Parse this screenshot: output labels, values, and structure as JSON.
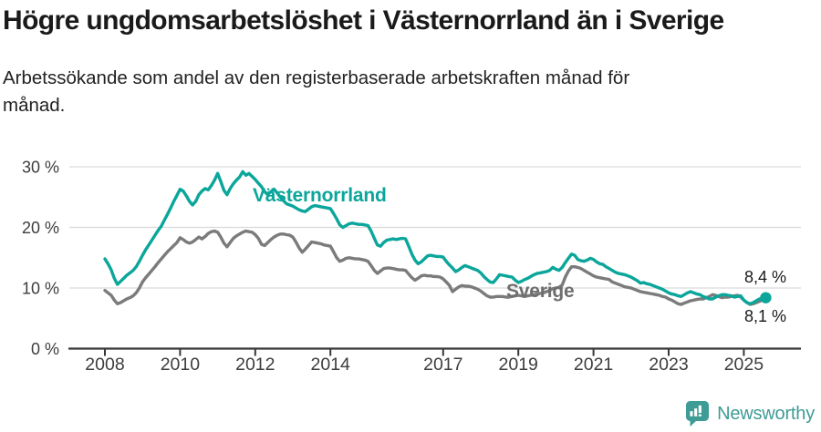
{
  "header": {
    "title": "Högre ungdomsarbetslöshet i Västernorrland än i Sverige",
    "subtitle": "Arbetssökande som andel av den registerbaserade arbetskraften månad för\nmånad."
  },
  "footer": {
    "brand": "Newsworthy"
  },
  "colors": {
    "accent_teal": "#0ba69b",
    "series_gray": "#7b7b7b",
    "grid": "#dadada",
    "axis": "#383838",
    "tick_text": "#3d3d3d",
    "brand_teal": "#3e9b95"
  },
  "chart_data": {
    "type": "line",
    "title": "Högre ungdomsarbetslöshet i Västernorrland än i Sverige",
    "subtitle": "Arbetssökande som andel av den registerbaserade arbetskraften månad för månad.",
    "unit": "%",
    "frequency": "monthly",
    "x_start": "2008-01",
    "x_end": "2025-08",
    "ylim": [
      0,
      31.5
    ],
    "grid": "horizontal",
    "legend_position": "inline",
    "y_ticks": [
      0,
      10,
      20,
      30
    ],
    "y_tick_labels": [
      "0 %",
      "10 %",
      "20 %",
      "30 %"
    ],
    "x_tick_years": [
      2008,
      2010,
      2012,
      2014,
      2017,
      2019,
      2021,
      2023,
      2025
    ],
    "series": [
      {
        "name": "Sverige",
        "color": "#7b7b7b",
        "end_label": "8,1 %",
        "end_value": 8.1,
        "values": [
          9.6,
          9.2,
          8.8,
          8.0,
          7.4,
          7.6,
          7.9,
          8.2,
          8.4,
          8.7,
          9.2,
          10.0,
          11.0,
          11.7,
          12.3,
          12.9,
          13.5,
          14.2,
          14.8,
          15.4,
          16.0,
          16.5,
          17.0,
          17.5,
          18.3,
          18.0,
          17.6,
          17.4,
          17.6,
          18.0,
          18.4,
          18.1,
          18.5,
          19.0,
          19.3,
          19.4,
          19.2,
          18.4,
          17.4,
          16.8,
          17.5,
          18.2,
          18.6,
          18.9,
          19.2,
          19.4,
          19.3,
          19.2,
          18.8,
          18.2,
          17.2,
          17.0,
          17.5,
          18.0,
          18.4,
          18.7,
          18.9,
          18.9,
          18.8,
          18.7,
          18.4,
          17.6,
          16.6,
          15.9,
          16.4,
          17.0,
          17.6,
          17.5,
          17.4,
          17.3,
          17.1,
          17.0,
          16.9,
          16.0,
          15.0,
          14.4,
          14.6,
          14.9,
          15.0,
          14.9,
          14.8,
          14.8,
          14.7,
          14.6,
          14.4,
          13.7,
          12.9,
          12.4,
          12.8,
          13.2,
          13.3,
          13.3,
          13.2,
          13.1,
          13.0,
          13.0,
          12.9,
          12.3,
          11.7,
          11.3,
          11.6,
          12.0,
          12.1,
          12.0,
          12.0,
          11.9,
          11.9,
          11.8,
          11.5,
          11.0,
          10.4,
          9.4,
          9.8,
          10.2,
          10.4,
          10.3,
          10.3,
          10.2,
          10.0,
          9.8,
          9.5,
          9.1,
          8.7,
          8.5,
          8.5,
          8.6,
          8.6,
          8.6,
          8.5,
          8.5,
          8.6,
          8.7,
          8.8,
          8.7,
          8.6,
          8.7,
          8.8,
          8.9,
          9.0,
          9.1,
          9.2,
          9.4,
          9.6,
          9.9,
          10.0,
          10.1,
          10.5,
          11.8,
          12.8,
          13.5,
          13.5,
          13.4,
          13.2,
          12.9,
          12.6,
          12.3,
          12.0,
          11.8,
          11.7,
          11.6,
          11.5,
          11.4,
          11.0,
          10.8,
          10.6,
          10.4,
          10.2,
          10.1,
          10.0,
          9.8,
          9.6,
          9.4,
          9.3,
          9.2,
          9.1,
          9.0,
          8.9,
          8.8,
          8.6,
          8.5,
          8.2,
          8.0,
          7.7,
          7.4,
          7.3,
          7.5,
          7.7,
          7.9,
          8.0,
          8.1,
          8.2,
          8.2,
          8.4,
          8.6,
          8.9,
          8.8,
          8.6,
          8.4,
          8.5,
          8.5,
          8.6,
          8.7,
          8.8,
          8.5,
          8.0,
          7.6,
          7.3,
          7.4,
          7.6,
          7.8,
          8.0,
          8.1
        ]
      },
      {
        "name": "Västernorrland",
        "color": "#0ba69b",
        "end_label": "8,4 %",
        "end_value": 8.4,
        "end_dot": true,
        "values": [
          14.8,
          14.0,
          13.0,
          11.6,
          10.6,
          11.1,
          11.6,
          12.1,
          12.5,
          12.9,
          13.5,
          14.4,
          15.4,
          16.3,
          17.1,
          17.9,
          18.7,
          19.5,
          20.2,
          21.2,
          22.2,
          23.2,
          24.3,
          25.3,
          26.3,
          26.0,
          25.2,
          24.3,
          23.7,
          24.3,
          25.4,
          26.0,
          26.4,
          26.2,
          26.9,
          27.8,
          28.9,
          27.6,
          26.1,
          25.4,
          26.4,
          27.2,
          27.8,
          28.3,
          29.2,
          28.6,
          28.9,
          28.4,
          27.9,
          27.3,
          26.7,
          25.9,
          25.4,
          25.9,
          26.3,
          25.7,
          25.0,
          24.4,
          23.9,
          23.7,
          23.5,
          23.2,
          22.9,
          22.7,
          22.6,
          23.0,
          23.4,
          23.6,
          23.5,
          23.4,
          23.3,
          23.2,
          23.1,
          22.3,
          21.4,
          20.4,
          20.0,
          20.3,
          20.6,
          20.7,
          20.6,
          20.5,
          20.5,
          20.4,
          20.3,
          19.4,
          18.2,
          17.1,
          16.9,
          17.5,
          17.9,
          18.0,
          18.1,
          18.0,
          18.1,
          18.2,
          18.1,
          16.9,
          15.6,
          14.6,
          14.0,
          14.3,
          14.8,
          15.3,
          15.4,
          15.3,
          15.2,
          15.2,
          15.1,
          14.4,
          13.8,
          13.3,
          12.7,
          13.0,
          13.4,
          13.7,
          13.5,
          13.3,
          13.1,
          12.9,
          12.5,
          11.9,
          11.4,
          11.0,
          10.9,
          11.5,
          12.2,
          12.1,
          12.0,
          11.9,
          11.8,
          11.3,
          10.9,
          11.1,
          11.4,
          11.6,
          11.9,
          12.2,
          12.4,
          12.5,
          12.6,
          12.7,
          12.9,
          13.4,
          13.1,
          12.9,
          13.4,
          14.2,
          14.9,
          15.6,
          15.4,
          14.7,
          14.5,
          14.4,
          14.6,
          14.9,
          14.7,
          14.3,
          14.0,
          13.9,
          13.5,
          13.2,
          12.9,
          12.6,
          12.4,
          12.3,
          12.2,
          12.0,
          11.8,
          11.5,
          11.2,
          10.8,
          10.9,
          10.7,
          10.6,
          10.4,
          10.2,
          10.0,
          9.8,
          9.5,
          9.2,
          9.0,
          8.9,
          8.7,
          8.6,
          8.9,
          9.2,
          9.4,
          9.2,
          9.0,
          8.9,
          8.6,
          8.4,
          8.2,
          8.2,
          8.5,
          8.7,
          8.9,
          8.9,
          8.8,
          8.7,
          8.5,
          8.6,
          8.7,
          8.0,
          7.6,
          7.4,
          7.6,
          7.9,
          8.2,
          8.3,
          8.4
        ]
      }
    ]
  }
}
